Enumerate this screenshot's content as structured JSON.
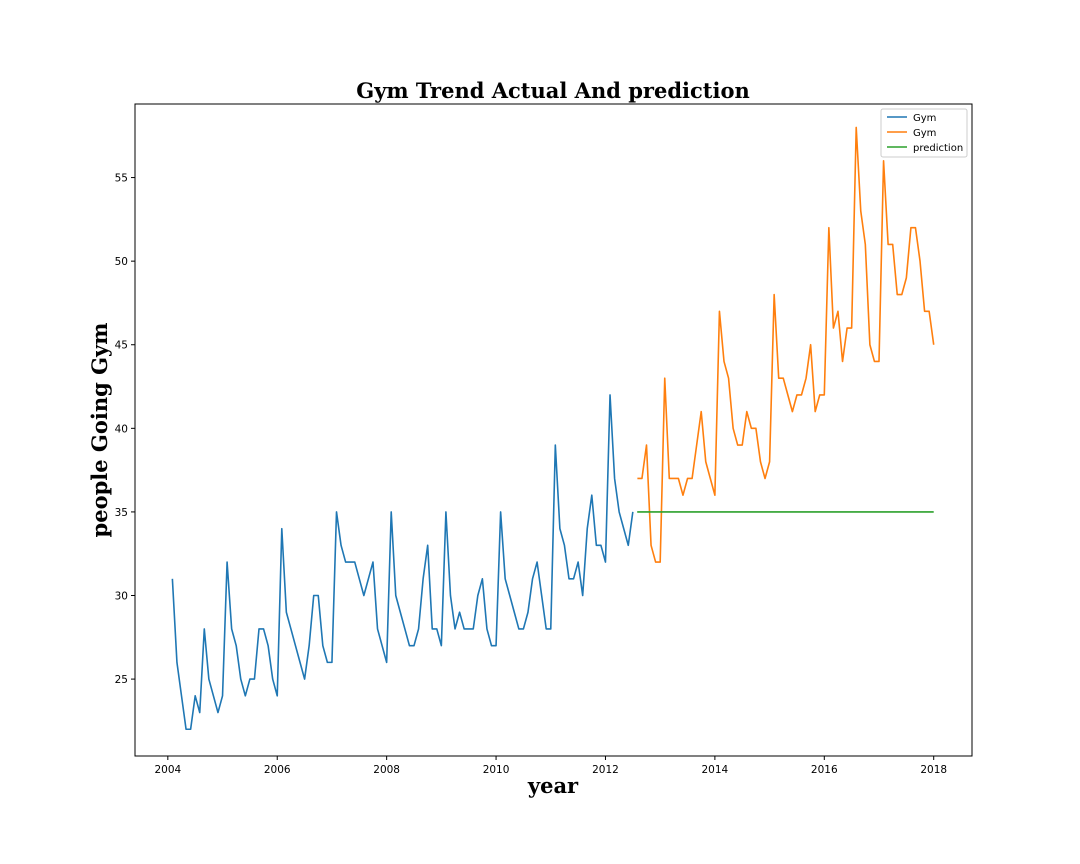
{
  "chart_data": {
    "type": "line",
    "title": "Gym Trend Actual And prediction",
    "xlabel": "year",
    "ylabel": "people Going Gym",
    "xlim": [
      2003.4,
      2018.7
    ],
    "ylim": [
      20.4,
      59.4
    ],
    "x_ticks": [
      2004,
      2006,
      2008,
      2010,
      2012,
      2014,
      2016,
      2018
    ],
    "x_tick_labels": [
      "2004",
      "2006",
      "2008",
      "2010",
      "2012",
      "2014",
      "2016",
      "2018"
    ],
    "y_ticks": [
      25,
      30,
      35,
      40,
      45,
      50,
      55
    ],
    "y_tick_labels": [
      "25",
      "30",
      "35",
      "40",
      "45",
      "50",
      "55"
    ],
    "grid": false,
    "legend": {
      "placement": "top-right",
      "entries": [
        "Gym",
        "Gym",
        "prediction"
      ]
    },
    "colors": {
      "gym_train": "#1f77b4",
      "gym_test": "#ff7f0e",
      "prediction": "#2ca02c"
    },
    "series": [
      {
        "name": "Gym",
        "color": "#1f77b4",
        "start_year": 2004,
        "start_month": 2,
        "values": [
          31,
          26,
          24,
          22,
          22,
          24,
          23,
          28,
          25,
          24,
          23,
          24,
          32,
          28,
          27,
          25,
          24,
          25,
          25,
          28,
          28,
          27,
          25,
          24,
          34,
          29,
          28,
          27,
          26,
          25,
          27,
          30,
          30,
          27,
          26,
          26,
          35,
          33,
          32,
          32,
          32,
          31,
          30,
          31,
          32,
          28,
          27,
          26,
          35,
          30,
          29,
          28,
          27,
          27,
          28,
          31,
          33,
          28,
          28,
          27,
          35,
          30,
          28,
          29,
          28,
          28,
          28,
          30,
          31,
          28,
          27,
          27,
          35,
          31,
          30,
          29,
          28,
          28,
          29,
          31,
          32,
          30,
          28,
          28,
          39,
          34,
          33,
          31,
          31,
          32,
          30,
          34,
          36,
          33,
          33,
          32,
          42,
          37,
          35,
          34,
          33,
          35
        ]
      },
      {
        "name": "Gym",
        "color": "#ff7f0e",
        "start_year": 2012,
        "start_month": 8,
        "values": [
          37,
          37,
          39,
          33,
          32,
          32,
          43,
          37,
          37,
          37,
          36,
          37,
          37,
          39,
          41,
          38,
          37,
          36,
          47,
          44,
          43,
          40,
          39,
          39,
          41,
          40,
          40,
          38,
          37,
          38,
          48,
          43,
          43,
          42,
          41,
          42,
          42,
          43,
          45,
          41,
          42,
          42,
          52,
          46,
          47,
          44,
          46,
          46,
          58,
          53,
          51,
          45,
          44,
          44,
          56,
          51,
          51,
          48,
          48,
          49,
          52,
          52,
          50,
          47,
          47,
          45
        ]
      },
      {
        "name": "prediction",
        "color": "#2ca02c",
        "x": [
          2012.58,
          2018.0
        ],
        "values": [
          35,
          35
        ]
      }
    ]
  }
}
